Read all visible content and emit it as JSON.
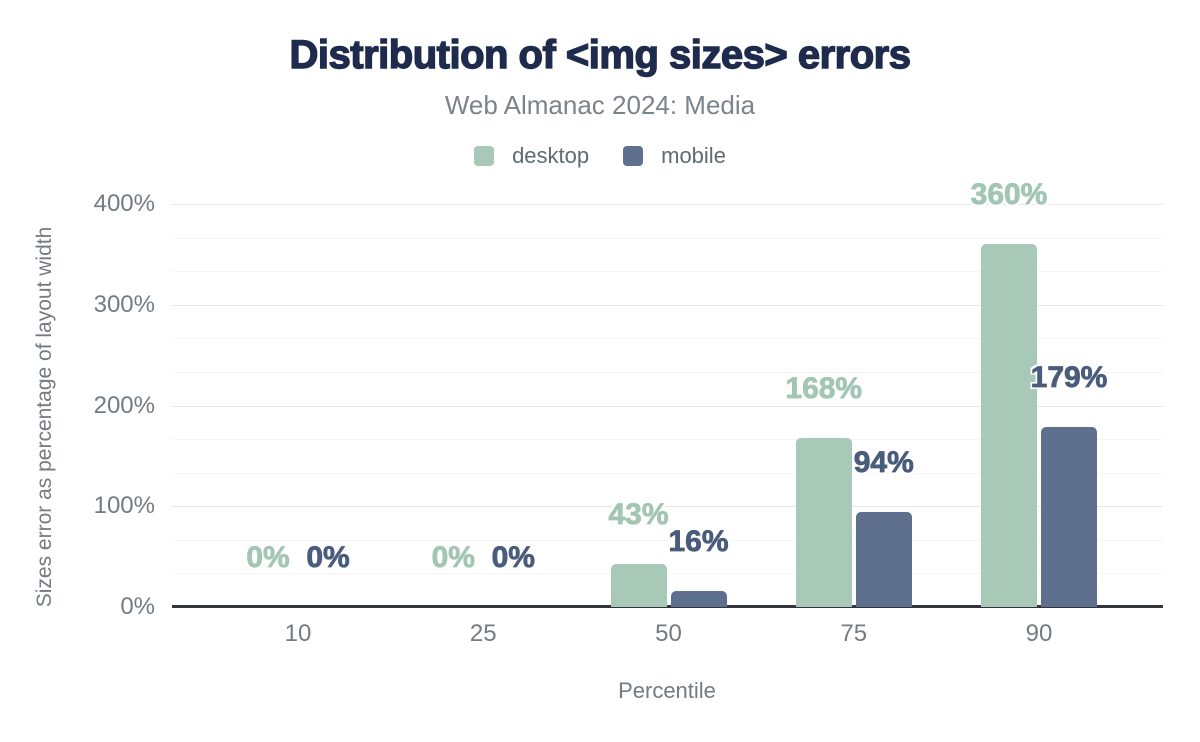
{
  "chart_data": {
    "type": "bar",
    "title": "Distribution of <img sizes> errors",
    "subtitle": "Web Almanac 2024: Media",
    "categories": [
      "10",
      "25",
      "50",
      "75",
      "90"
    ],
    "series": [
      {
        "name": "desktop",
        "color": "#a8c9b7",
        "label_color": "#a3c6b4",
        "values": [
          0,
          0,
          43,
          168,
          360
        ],
        "labels": [
          "0%",
          "0%",
          "43%",
          "168%",
          "360%"
        ]
      },
      {
        "name": "mobile",
        "color": "#5e708d",
        "label_color": "#4a5c7c",
        "values": [
          0,
          0,
          16,
          94,
          179
        ],
        "labels": [
          "0%",
          "0%",
          "16%",
          "94%",
          "179%"
        ]
      }
    ],
    "xlabel": "Percentile",
    "ylabel": "Sizes error as percentage of layout width",
    "ylim": [
      0,
      400
    ],
    "ytick_values": [
      0,
      100,
      200,
      300,
      400
    ],
    "ytick_labels": [
      "0%",
      "100%",
      "200%",
      "300%",
      "400%"
    ],
    "minor_gridlines_per_major": 2,
    "grid": "horizontal",
    "legend_position": "top"
  },
  "colors": {
    "title": "#1f2b4d",
    "subtitle": "#7b838b",
    "axis_text": "#737b83",
    "baseline": "#32363c",
    "grid_major": "#e7e7e7",
    "grid_minor": "#f5f5f5",
    "background": "#ffffff"
  }
}
